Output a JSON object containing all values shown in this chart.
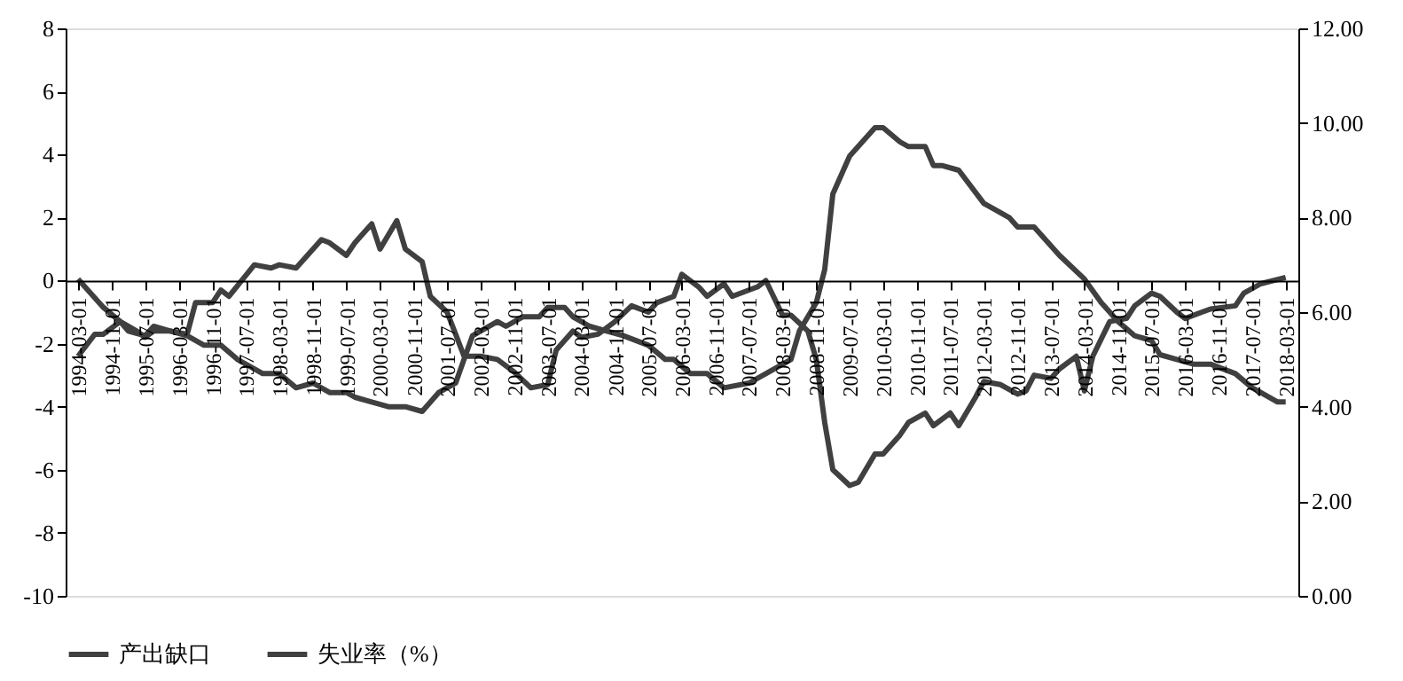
{
  "chart_data": {
    "type": "line",
    "legend": "bottom",
    "grid": false,
    "marker": "none",
    "line_style": "solid",
    "xlim": [
      "1993-12-01",
      "2018-06-01"
    ],
    "xticks": [
      "1994-03-01",
      "1994-11-01",
      "1995-07-01",
      "1996-03-01",
      "1996-11-01",
      "1997-07-01",
      "1998-03-01",
      "1998-11-01",
      "1999-07-01",
      "2000-03-01",
      "2000-11-01",
      "2001-07-01",
      "2002-03-01",
      "2002-11-01",
      "2003-07-01",
      "2004-03-01",
      "2004-11-01",
      "2005-07-01",
      "2006-03-01",
      "2006-11-01",
      "2007-07-01",
      "2008-03-01",
      "2008-11-01",
      "2009-07-01",
      "2010-03-01",
      "2010-11-01",
      "2011-07-01",
      "2012-03-01",
      "2012-11-01",
      "2013-07-01",
      "2014-03-01",
      "2014-11-01",
      "2015-07-01",
      "2016-03-01",
      "2016-11-01",
      "2017-07-01",
      "2018-03-01"
    ],
    "ylim": [
      -10,
      8
    ],
    "yticks": [
      -10,
      -8,
      -6,
      -4,
      -2,
      0,
      2,
      4,
      6,
      8
    ],
    "y2lim": [
      0,
      12
    ],
    "y2ticks": [
      {
        "value": 0,
        "label": "0.00"
      },
      {
        "value": 2,
        "label": "2.00"
      },
      {
        "value": 4,
        "label": "4.00"
      },
      {
        "value": 6,
        "label": "6.00"
      },
      {
        "value": 8,
        "label": "8.00"
      },
      {
        "value": 10,
        "label": "10.00"
      },
      {
        "value": 12,
        "label": "12.00"
      }
    ],
    "series": [
      {
        "name": "产出缺口",
        "color": "#404040",
        "axis": "y",
        "x": [
          "1994-03-01",
          "1994-07-01",
          "1994-09-01",
          "1995-01-01",
          "1995-05-01",
          "1995-07-01",
          "1995-09-01",
          "1996-01-01",
          "1996-05-01",
          "1996-07-01",
          "1996-11-01",
          "1997-01-01",
          "1997-03-01",
          "1997-09-01",
          "1998-01-01",
          "1998-03-01",
          "1998-07-01",
          "1998-09-01",
          "1999-01-01",
          "1999-03-01",
          "1999-07-01",
          "1999-09-01",
          "2000-01-01",
          "2000-03-01",
          "2000-07-01",
          "2000-09-01",
          "2001-01-01",
          "2001-03-01",
          "2001-07-01",
          "2001-09-01",
          "2001-11-01",
          "2002-03-01",
          "2002-07-01",
          "2002-11-01",
          "2003-03-01",
          "2003-07-01",
          "2003-09-01",
          "2004-01-01",
          "2004-03-01",
          "2004-07-01",
          "2004-11-01",
          "2005-03-01",
          "2005-07-01",
          "2005-09-01",
          "2006-01-01",
          "2006-03-01",
          "2006-07-01",
          "2006-09-01",
          "2007-01-01",
          "2007-03-01",
          "2007-09-01",
          "2007-11-01",
          "2008-03-01",
          "2008-05-01",
          "2008-09-01",
          "2008-11-01",
          "2009-01-01",
          "2009-03-01",
          "2009-07-01",
          "2009-09-01",
          "2010-01-01",
          "2010-03-01",
          "2010-07-01",
          "2010-09-01",
          "2011-01-01",
          "2011-03-01",
          "2011-07-01",
          "2011-09-01",
          "2012-01-01",
          "2012-03-01",
          "2012-07-01",
          "2012-11-01",
          "2013-01-01",
          "2013-03-01",
          "2013-07-01",
          "2013-09-01",
          "2014-01-01",
          "2014-03-01",
          "2014-05-01",
          "2014-09-01",
          "2015-01-01",
          "2015-03-01",
          "2015-07-01",
          "2015-09-01",
          "2016-01-01",
          "2016-03-01",
          "2016-07-01",
          "2016-09-01",
          "2017-03-01",
          "2017-05-01",
          "2017-09-01",
          "2018-03-01"
        ],
        "values": [
          -2.4,
          -1.7,
          -1.7,
          -1.3,
          -1.6,
          -1.8,
          -1.6,
          -1.6,
          -1.7,
          -0.7,
          -0.7,
          -0.3,
          -0.5,
          0.5,
          0.4,
          0.5,
          0.4,
          0.7,
          1.3,
          1.2,
          0.8,
          1.2,
          1.8,
          1.0,
          1.9,
          1.0,
          0.6,
          -0.5,
          -1.0,
          -1.7,
          -2.4,
          -2.4,
          -2.5,
          -2.9,
          -3.4,
          -3.3,
          -2.2,
          -1.6,
          -1.8,
          -1.7,
          -1.3,
          -0.8,
          -1.0,
          -0.7,
          -0.5,
          0.2,
          -0.2,
          -0.5,
          -0.1,
          -0.5,
          -0.2,
          0.0,
          -1.1,
          -1.1,
          -1.6,
          -2.5,
          -4.5,
          -6.0,
          -6.5,
          -6.4,
          -5.5,
          -5.5,
          -4.9,
          -4.5,
          -4.2,
          -4.6,
          -4.2,
          -4.6,
          -3.7,
          -3.2,
          -3.3,
          -3.6,
          -3.5,
          -3.0,
          -3.1,
          -2.8,
          -2.4,
          -3.5,
          -2.4,
          -1.3,
          -1.2,
          -0.8,
          -0.4,
          -0.5,
          -1.0,
          -1.2,
          -1.0,
          -0.9,
          -0.8,
          -0.4,
          -0.1,
          0.1
        ]
      },
      {
        "name": "失业率（%）",
        "color": "#404040",
        "axis": "y2",
        "x": [
          "1994-03-01",
          "1994-09-01",
          "1995-01-01",
          "1995-03-01",
          "1995-07-01",
          "1995-09-01",
          "1996-01-01",
          "1996-05-01",
          "1996-09-01",
          "1997-01-01",
          "1997-05-01",
          "1997-11-01",
          "1998-03-01",
          "1998-07-01",
          "1998-11-01",
          "1999-03-01",
          "1999-07-01",
          "1999-09-01",
          "2000-01-01",
          "2000-05-01",
          "2000-09-01",
          "2001-01-01",
          "2001-05-01",
          "2001-09-01",
          "2001-11-01",
          "2002-01-01",
          "2002-07-01",
          "2002-09-01",
          "2003-01-01",
          "2003-05-01",
          "2003-07-01",
          "2003-11-01",
          "2004-01-01",
          "2004-05-01",
          "2004-09-01",
          "2005-01-01",
          "2005-07-01",
          "2005-11-01",
          "2006-01-01",
          "2006-05-01",
          "2006-09-01",
          "2007-01-01",
          "2007-07-01",
          "2007-11-01",
          "2008-05-01",
          "2008-07-01",
          "2008-11-01",
          "2009-01-01",
          "2009-03-01",
          "2009-07-01",
          "2010-01-01",
          "2010-03-01",
          "2010-07-01",
          "2010-09-01",
          "2011-01-01",
          "2011-03-01",
          "2011-05-01",
          "2011-09-01",
          "2012-03-01",
          "2012-05-01",
          "2012-09-01",
          "2012-11-01",
          "2013-03-01",
          "2013-09-01",
          "2014-03-01",
          "2014-07-01",
          "2014-09-01",
          "2014-11-01",
          "2015-03-01",
          "2015-07-01",
          "2015-09-01",
          "2016-01-01",
          "2016-05-01",
          "2016-09-01",
          "2017-03-01",
          "2017-07-01",
          "2017-09-01",
          "2018-01-01",
          "2018-03-01"
        ],
        "values": [
          6.7,
          6.1,
          5.8,
          5.6,
          5.5,
          5.7,
          5.6,
          5.5,
          5.3,
          5.3,
          5.0,
          4.7,
          4.7,
          4.4,
          4.5,
          4.3,
          4.3,
          4.2,
          4.1,
          4.0,
          4.0,
          3.9,
          4.3,
          4.5,
          5.0,
          5.5,
          5.8,
          5.7,
          5.9,
          5.9,
          6.1,
          6.1,
          5.9,
          5.7,
          5.6,
          5.5,
          5.3,
          5.0,
          5.0,
          4.7,
          4.7,
          4.4,
          4.5,
          4.7,
          5.0,
          5.6,
          6.2,
          6.9,
          8.5,
          9.3,
          9.9,
          9.9,
          9.6,
          9.5,
          9.5,
          9.1,
          9.1,
          9.0,
          8.3,
          8.2,
          8.0,
          7.8,
          7.8,
          7.2,
          6.7,
          6.2,
          6.0,
          5.8,
          5.5,
          5.4,
          5.1,
          5.0,
          4.9,
          4.9,
          4.7,
          4.4,
          4.3,
          4.1,
          4.1
        ]
      }
    ]
  }
}
